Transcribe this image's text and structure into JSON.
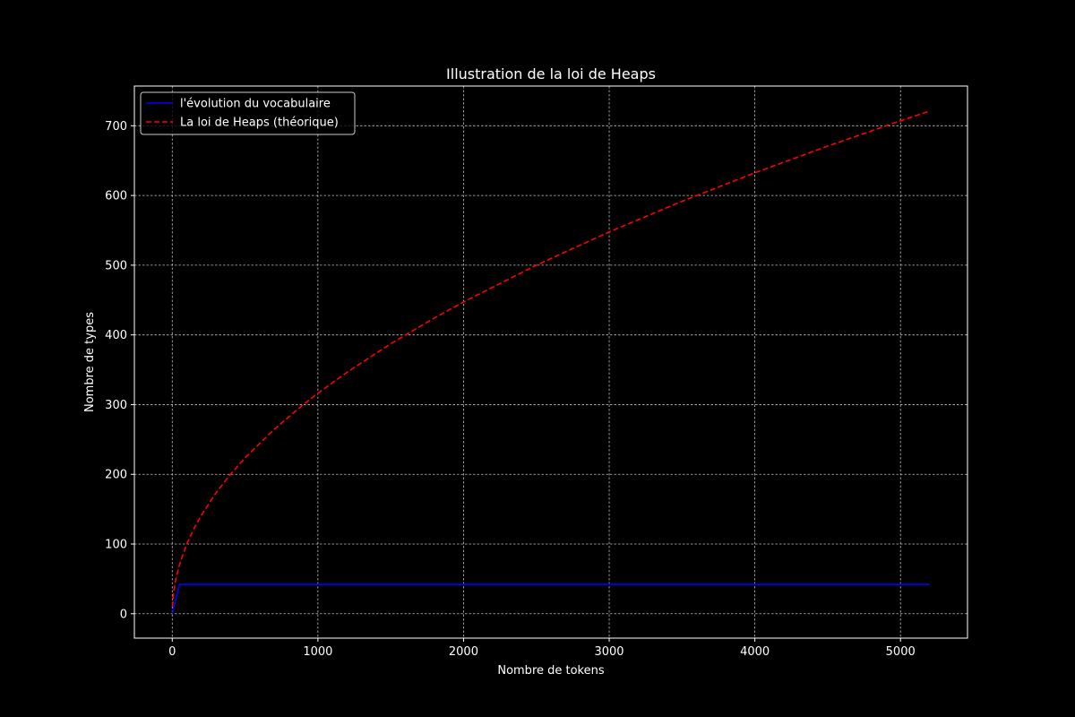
{
  "chart_data": {
    "type": "line",
    "title": "Illustration de la loi de Heaps",
    "xlabel": "Nombre de tokens",
    "ylabel": "Nombre de types",
    "xlim": [
      -260,
      5460
    ],
    "ylim": [
      -35,
      757
    ],
    "xticks": [
      0,
      1000,
      2000,
      3000,
      4000,
      5000
    ],
    "yticks": [
      0,
      100,
      200,
      300,
      400,
      500,
      600,
      700
    ],
    "grid": true,
    "legend_position": "upper-left",
    "background": "#000000",
    "series": [
      {
        "name": "l'évolution du vocabulaire",
        "color": "#0000ff",
        "style": "solid",
        "x": [
          0,
          50,
          5200
        ],
        "y": [
          0,
          42,
          42
        ]
      },
      {
        "name": "La loi de Heaps (théorique)",
        "color": "#ff0000",
        "style": "dashed",
        "x": [
          1,
          10,
          25,
          50,
          100,
          150,
          200,
          300,
          400,
          500,
          700,
          900,
          1000,
          1200,
          1500,
          1800,
          2000,
          2500,
          3000,
          3500,
          4000,
          4500,
          5000,
          5200
        ],
        "y": [
          10,
          31.6,
          50,
          70.7,
          100,
          122.5,
          141.4,
          173.2,
          200,
          223.6,
          264.6,
          300,
          316.2,
          346.4,
          387.3,
          424.3,
          447.2,
          500,
          547.7,
          591.6,
          632.5,
          670.8,
          707.1,
          721.1
        ]
      }
    ]
  }
}
